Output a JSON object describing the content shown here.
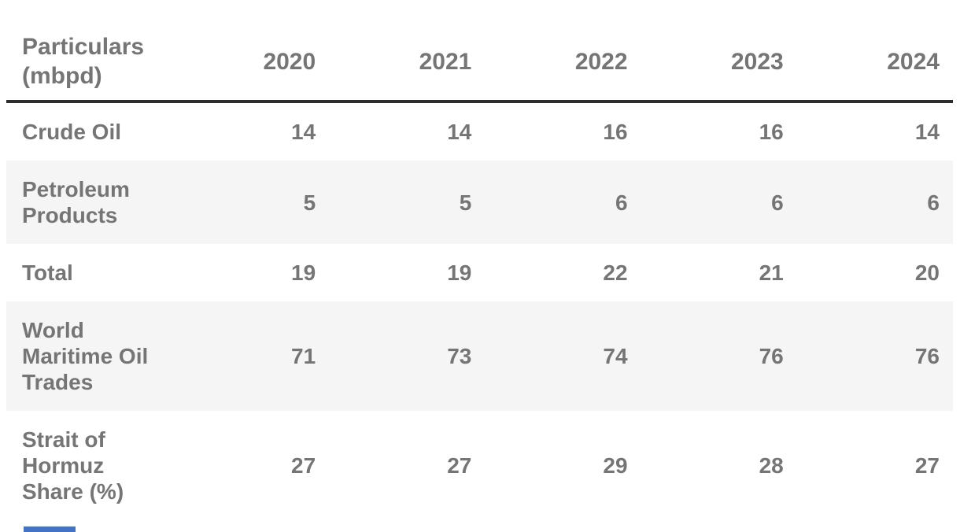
{
  "table": {
    "header": {
      "particulars_label": "Particulars\n(mbpd)",
      "years": [
        "2020",
        "2021",
        "2022",
        "2023",
        "2024"
      ]
    },
    "rows": [
      {
        "label": "Crude Oil",
        "values": [
          "14",
          "14",
          "16",
          "16",
          "14"
        ]
      },
      {
        "label": "Petroleum\nProducts",
        "values": [
          "5",
          "5",
          "6",
          "6",
          "6"
        ]
      },
      {
        "label": "Total",
        "values": [
          "19",
          "19",
          "22",
          "21",
          "20"
        ]
      },
      {
        "label": "World\nMaritime Oil\nTrades",
        "values": [
          "71",
          "73",
          "74",
          "76",
          "76"
        ]
      },
      {
        "label": "Strait of\nHormuz\nShare (%)",
        "values": [
          "27",
          "27",
          "29",
          "28",
          "27"
        ]
      }
    ]
  },
  "chart_data": {
    "type": "table",
    "title": "Particulars (mbpd)",
    "columns": [
      "Particulars (mbpd)",
      "2020",
      "2021",
      "2022",
      "2023",
      "2024"
    ],
    "categories": [
      "2020",
      "2021",
      "2022",
      "2023",
      "2024"
    ],
    "series": [
      {
        "name": "Crude Oil",
        "values": [
          14,
          14,
          16,
          16,
          14
        ]
      },
      {
        "name": "Petroleum Products",
        "values": [
          5,
          5,
          6,
          6,
          6
        ]
      },
      {
        "name": "Total",
        "values": [
          19,
          19,
          22,
          21,
          20
        ]
      },
      {
        "name": "World Maritime Oil Trades",
        "values": [
          71,
          73,
          74,
          76,
          76
        ]
      },
      {
        "name": "Strait of Hormuz Share (%)",
        "values": [
          27,
          27,
          29,
          28,
          27
        ]
      }
    ]
  },
  "colors": {
    "text_gray": "#757575",
    "header_rule": "#2d2d2d",
    "stripe_bg": "#f5f5f5",
    "accent_blue": "#4472c4"
  }
}
